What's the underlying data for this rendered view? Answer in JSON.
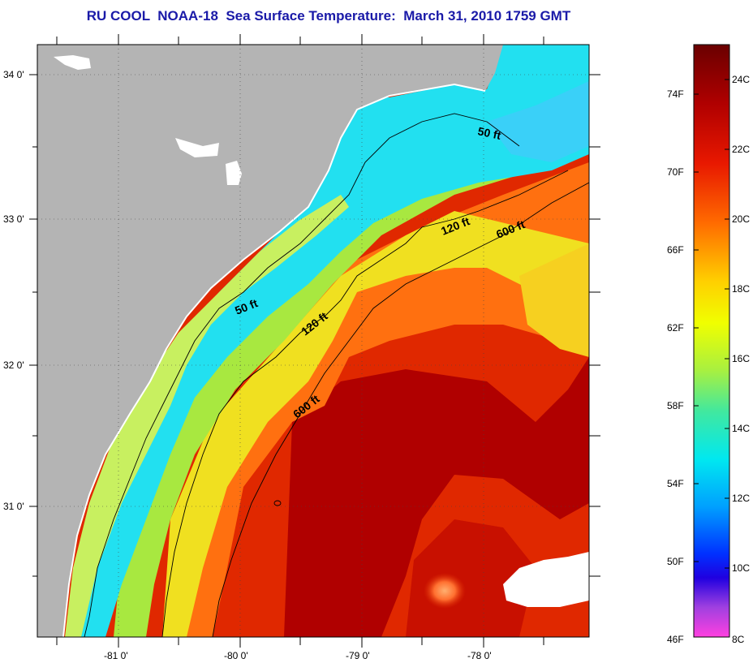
{
  "title": "RU COOL  NOAA-18  Sea Surface Temperature:  March 31, 2010 1759 GMT",
  "map": {
    "latitude_labels": [
      "34 0'",
      "33 0'",
      "32 0'",
      "31 0'"
    ],
    "longitude_labels": [
      "-81 0'",
      "-80 0'",
      "-79 0'",
      "-78 0'"
    ],
    "contour_labels": [
      "50 ft",
      "120 ft",
      "600 ft",
      "50 ft",
      "120 ft",
      "600 ft"
    ],
    "colors": {
      "land": "#b4b4b4",
      "cold_shelf": "#1fe6f0",
      "gulf_stream": "#b00000",
      "warm": "#e03000"
    }
  },
  "colorbar": {
    "fahrenheit_labels": [
      "74F",
      "70F",
      "66F",
      "62F",
      "58F",
      "54F",
      "50F",
      "46F"
    ],
    "celsius_labels": [
      "24C",
      "22C",
      "20C",
      "18C",
      "16C",
      "14C",
      "12C",
      "10C",
      "8C"
    ]
  }
}
